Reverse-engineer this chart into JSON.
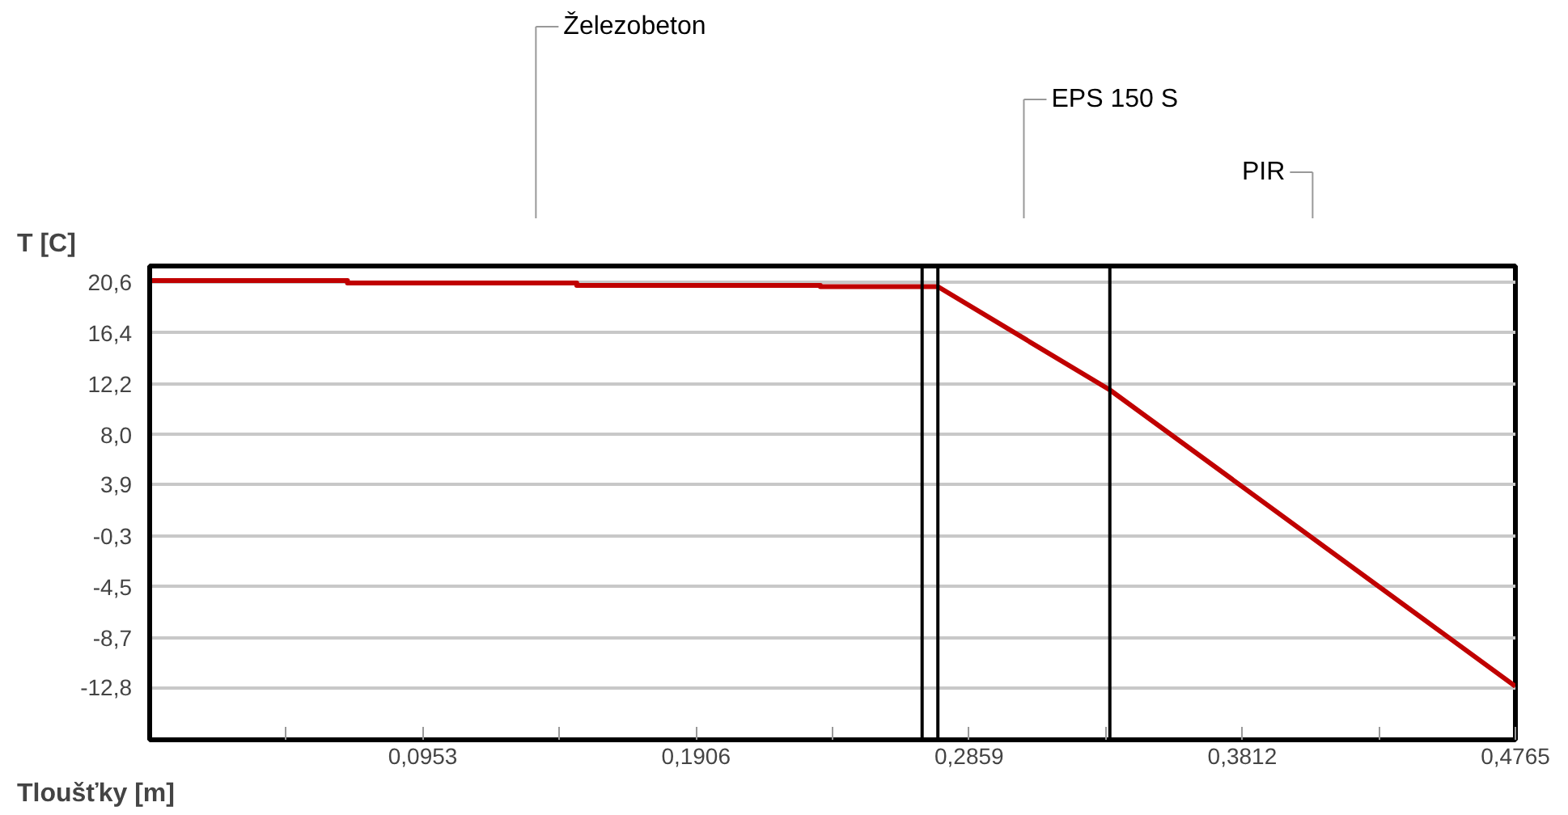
{
  "chart_data": {
    "type": "line",
    "xlabel": "Tloušťky [m]",
    "ylabel": "T [C]",
    "x": [
      0,
      0.069,
      0.069,
      0.149,
      0.149,
      0.234,
      0.234,
      0.275,
      0.335,
      0.4765
    ],
    "series": [
      {
        "color": "#c00000",
        "values": [
          20.7,
          20.7,
          20.5,
          20.5,
          20.3,
          20.3,
          20.2,
          20.2,
          11.7,
          -12.7
        ]
      }
    ],
    "xlim": [
      0,
      0.4765
    ],
    "ylim": [
      -17.1,
      21.9
    ],
    "xticks": [
      {
        "value": 0.04765,
        "label": null
      },
      {
        "value": 0.0953,
        "label": "0,0953"
      },
      {
        "value": 0.14295,
        "label": null
      },
      {
        "value": 0.1906,
        "label": "0,1906"
      },
      {
        "value": 0.23825,
        "label": null
      },
      {
        "value": 0.2859,
        "label": "0,2859"
      },
      {
        "value": 0.33355,
        "label": null
      },
      {
        "value": 0.3812,
        "label": "0,3812"
      },
      {
        "value": 0.42885,
        "label": null
      },
      {
        "value": 0.4765,
        "label": "0,4765"
      }
    ],
    "yticks": [
      {
        "value": 20.6,
        "label": "20,6"
      },
      {
        "value": 16.4,
        "label": "16,4"
      },
      {
        "value": 12.2,
        "label": "12,2"
      },
      {
        "value": 8.0,
        "label": "8,0"
      },
      {
        "value": 3.9,
        "label": "3,9"
      },
      {
        "value": -0.3,
        "label": "-0,3"
      },
      {
        "value": -4.5,
        "label": "-4,5"
      },
      {
        "value": -8.7,
        "label": "-8,7"
      },
      {
        "value": -12.8,
        "label": "-12,8"
      }
    ],
    "ref_lines": [
      {
        "axis": "x",
        "value": 0.2695,
        "color": "#000000"
      },
      {
        "axis": "x",
        "value": 0.275,
        "color": "#000000"
      },
      {
        "axis": "x",
        "value": 0.335,
        "color": "#000000"
      }
    ],
    "annotations": [
      "Železobeton",
      "EPS 150 S",
      "PIR"
    ],
    "grid": "y",
    "marker": "none",
    "line_style": "solid"
  }
}
